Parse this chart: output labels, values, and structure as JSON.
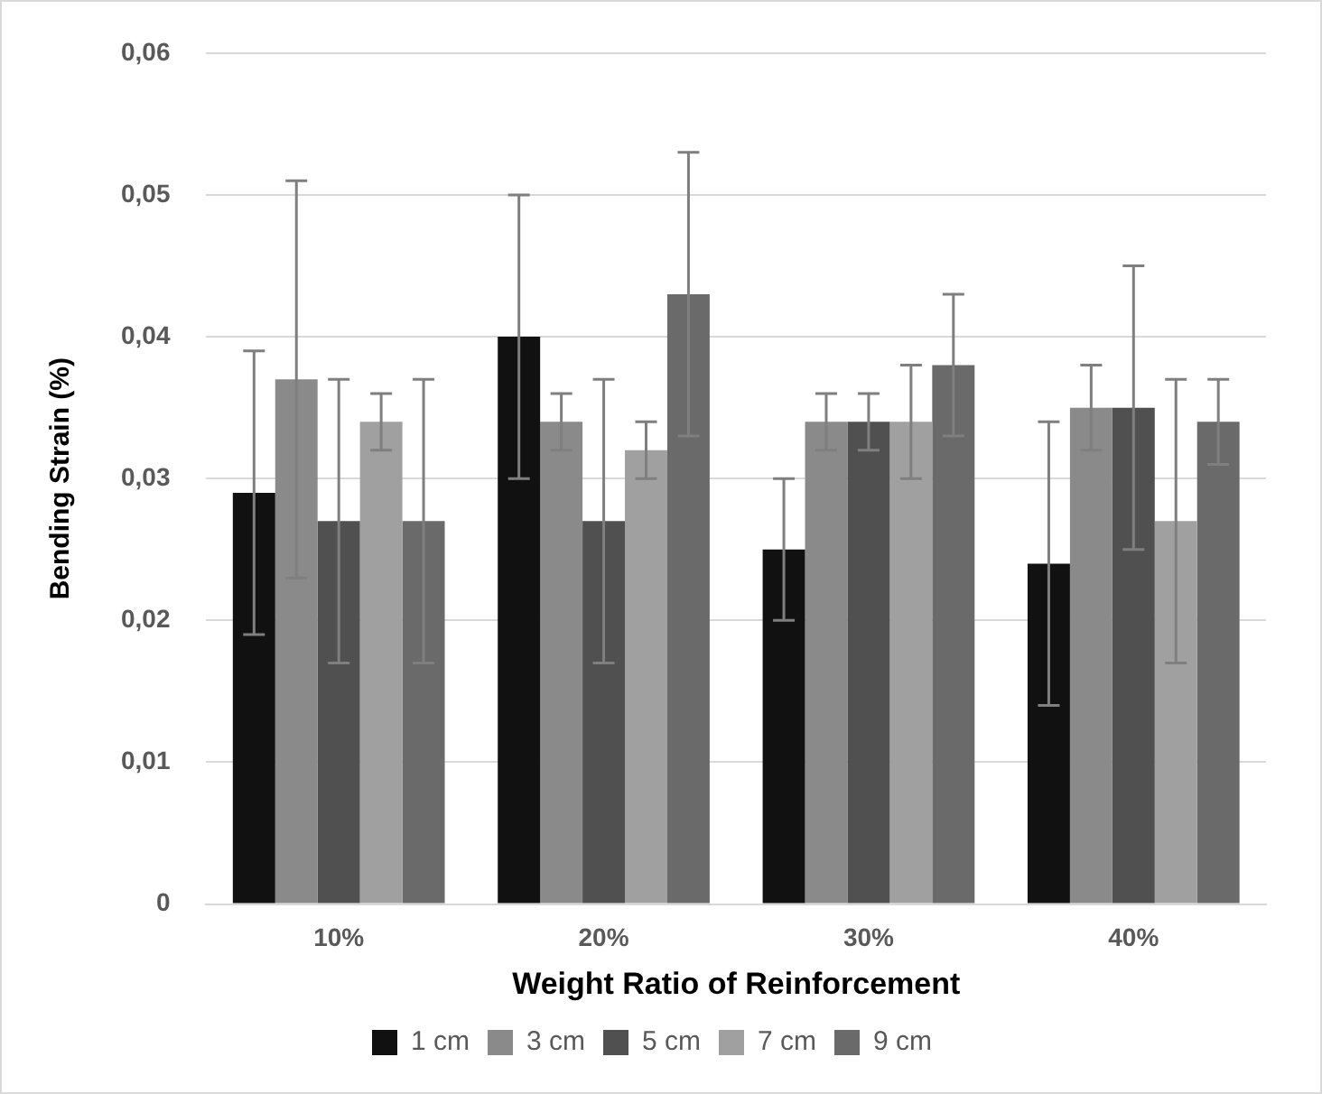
{
  "chart_data": {
    "type": "bar",
    "xlabel": "Weight Ratio of Reinforcement",
    "ylabel": "Bending Strain (%)",
    "categories": [
      "10%",
      "20%",
      "30%",
      "40%"
    ],
    "series": [
      {
        "name": "1 cm",
        "color": "#111111",
        "values": [
          0.029,
          0.04,
          0.025,
          0.024
        ],
        "errors": [
          0.01,
          0.01,
          0.005,
          0.01
        ]
      },
      {
        "name": "3 cm",
        "color": "#8a8a8a",
        "values": [
          0.037,
          0.034,
          0.034,
          0.035
        ],
        "errors": [
          0.014,
          0.002,
          0.002,
          0.003
        ]
      },
      {
        "name": "5 cm",
        "color": "#505050",
        "values": [
          0.027,
          0.027,
          0.034,
          0.035
        ],
        "errors": [
          0.01,
          0.01,
          0.002,
          0.01
        ]
      },
      {
        "name": "7 cm",
        "color": "#a0a0a0",
        "values": [
          0.034,
          0.032,
          0.034,
          0.027
        ],
        "errors": [
          0.002,
          0.002,
          0.004,
          0.01
        ]
      },
      {
        "name": "9 cm",
        "color": "#6a6a6a",
        "values": [
          0.027,
          0.043,
          0.038,
          0.034
        ],
        "errors": [
          0.01,
          0.01,
          0.005,
          0.003
        ]
      }
    ],
    "ylim": [
      0,
      0.06
    ],
    "yticks": [
      0,
      {
        "value": 0.01,
        "label": "0,01"
      },
      {
        "value": 0.02,
        "label": "0,02"
      },
      {
        "value": 0.03,
        "label": "0,03"
      },
      {
        "value": 0.04,
        "label": "0,04"
      },
      {
        "value": 0.05,
        "label": "0,05"
      },
      {
        "value": 0.06,
        "label": "0,06"
      }
    ],
    "grid": "y",
    "legend": "bottom"
  }
}
